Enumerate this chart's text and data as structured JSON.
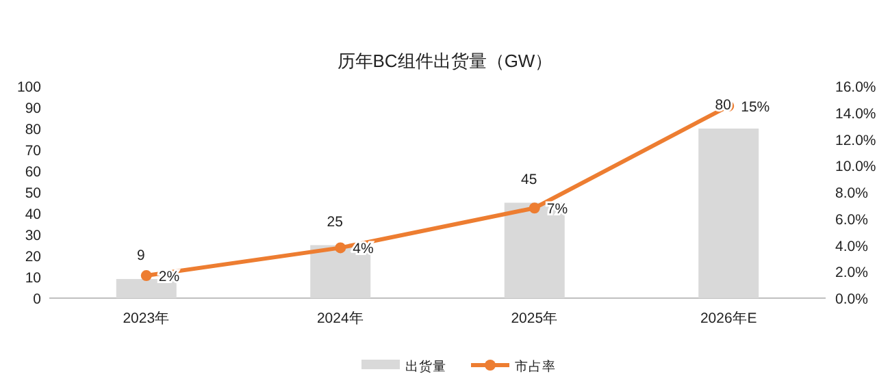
{
  "chart_data": {
    "type": "bar",
    "title": "历年BC组件出货量（GW）",
    "categories": [
      "2023年",
      "2024年",
      "2025年",
      "2026年E"
    ],
    "series": [
      {
        "name": "出货量",
        "color": "#d9d9d9",
        "values": [
          9,
          25,
          45,
          80
        ],
        "value_labels": [
          "9",
          "25",
          "45",
          "80"
        ]
      },
      {
        "name": "市占率",
        "type": "line",
        "axis": "y2",
        "color": "#ed7d31",
        "marker": "circle",
        "values": [
          1.7,
          3.8,
          6.8,
          14.5
        ],
        "value_labels": [
          "2%",
          "4%",
          "7%",
          "15%"
        ]
      }
    ],
    "ylim": [
      0,
      100
    ],
    "yticks": [
      0,
      10,
      20,
      30,
      40,
      50,
      60,
      70,
      80,
      90,
      100
    ],
    "y2lim": [
      0,
      16
    ],
    "y2ticks": [
      {
        "value": 0,
        "label": "0.0%"
      },
      {
        "value": 2,
        "label": "2.0%"
      },
      {
        "value": 4,
        "label": "4.0%"
      },
      {
        "value": 6,
        "label": "6.0%"
      },
      {
        "value": 8,
        "label": "8.0%"
      },
      {
        "value": 10,
        "label": "10.0%"
      },
      {
        "value": 12,
        "label": "12.0%"
      },
      {
        "value": 14,
        "label": "14.0%"
      },
      {
        "value": 16,
        "label": "16.0%"
      }
    ],
    "legend": "bottom"
  }
}
